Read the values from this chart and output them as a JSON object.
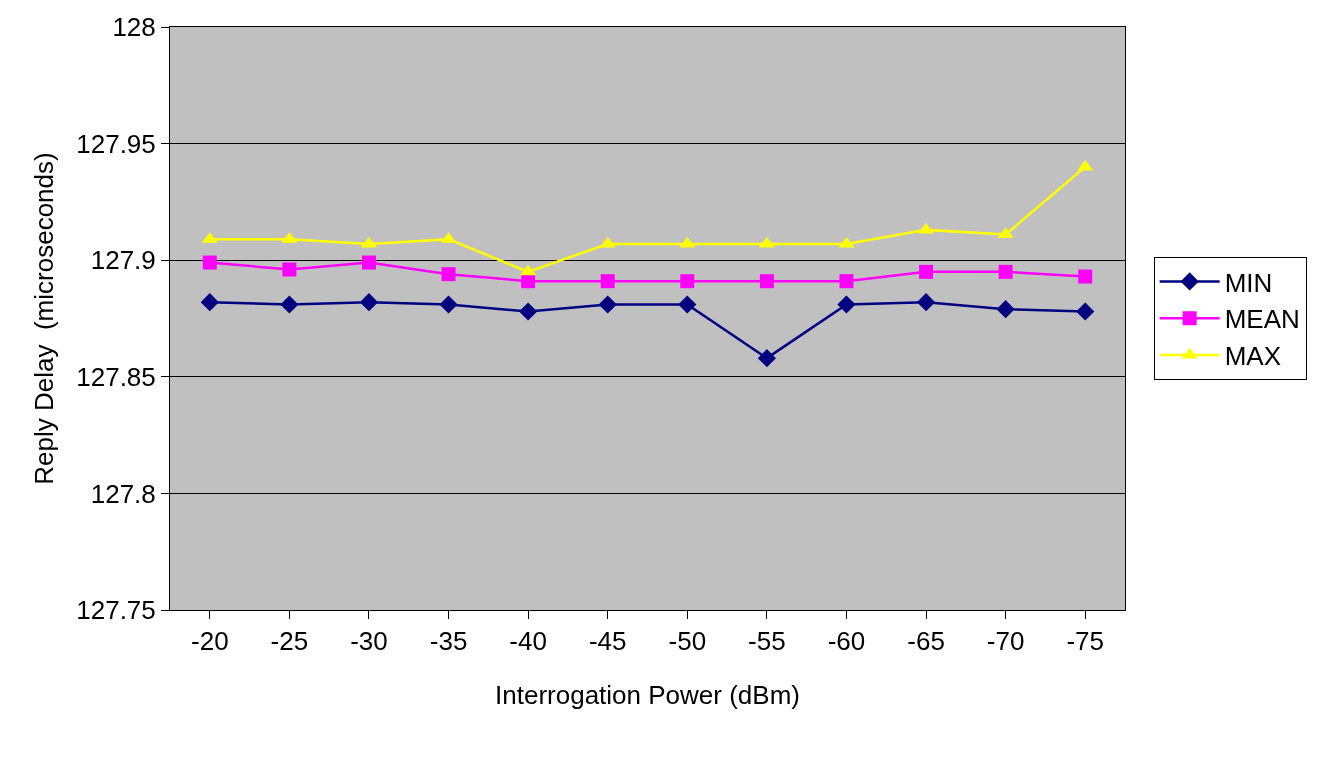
{
  "chart_data": {
    "type": "line",
    "xlabel": "Interrogation Power (dBm)",
    "ylabel": "Reply Delay  (microseconds)",
    "categories": [
      "-20",
      "-25",
      "-30",
      "-35",
      "-40",
      "-45",
      "-50",
      "-55",
      "-60",
      "-65",
      "-70",
      "-75"
    ],
    "series": [
      {
        "name": "MIN",
        "color": "#000080",
        "marker": "diamond",
        "values": [
          127.882,
          127.881,
          127.882,
          127.881,
          127.878,
          127.881,
          127.881,
          127.858,
          127.881,
          127.882,
          127.879,
          127.878
        ]
      },
      {
        "name": "MEAN",
        "color": "#ff00ff",
        "marker": "square",
        "values": [
          127.899,
          127.896,
          127.899,
          127.894,
          127.891,
          127.891,
          127.891,
          127.891,
          127.891,
          127.895,
          127.895,
          127.893
        ]
      },
      {
        "name": "MAX",
        "color": "#ffff00",
        "marker": "triangle",
        "values": [
          127.909,
          127.909,
          127.907,
          127.909,
          127.895,
          127.907,
          127.907,
          127.907,
          127.907,
          127.913,
          127.911,
          127.94
        ]
      }
    ],
    "ylim": [
      127.75,
      128
    ],
    "yticks": [
      127.75,
      127.8,
      127.85,
      127.9,
      127.95,
      128
    ],
    "grid": "y",
    "legend": "right",
    "line_style": "solid"
  }
}
